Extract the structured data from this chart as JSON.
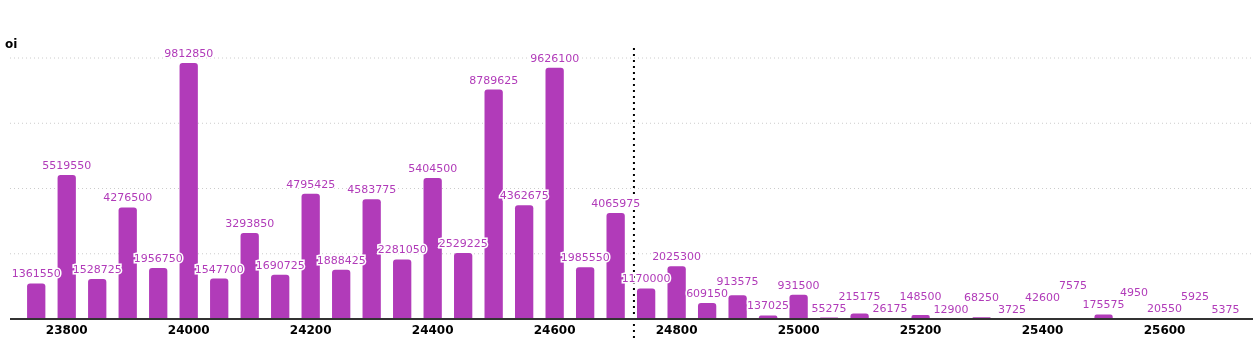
{
  "chart_data": {
    "type": "bar",
    "ylabel": "oi",
    "x": [
      23750,
      23800,
      23850,
      23900,
      23950,
      24000,
      24050,
      24100,
      24150,
      24200,
      24250,
      24300,
      24350,
      24400,
      24450,
      24500,
      24550,
      24600,
      24650,
      24700,
      24750,
      24800,
      24850,
      24900,
      24950,
      25000,
      25050,
      25100,
      25150,
      25200,
      25250,
      25300,
      25350,
      25400,
      25450,
      25500,
      25550,
      25600,
      25650,
      25700
    ],
    "values": [
      1361550,
      5519550,
      1528725,
      4276500,
      1956750,
      9812850,
      1547700,
      3293850,
      1690725,
      4795425,
      1888425,
      4583775,
      2281050,
      5404500,
      2529225,
      8789625,
      4362675,
      9626100,
      1985550,
      4065975,
      1170000,
      2025300,
      609150,
      913575,
      137025,
      931500,
      55275,
      215175,
      26175,
      148500,
      12900,
      68250,
      3725,
      42600,
      7575,
      175575,
      4950,
      20550,
      5925,
      5375
    ],
    "color": "#b13bb9",
    "data_labels": true,
    "xlim": [
      23707,
      25745
    ],
    "xticks": [
      23800,
      24000,
      24200,
      24400,
      24600,
      24800,
      25000,
      25200,
      25400,
      25600
    ],
    "ylim": [
      0,
      10000000
    ],
    "yticks": [
      {
        "value": 2500000,
        "label": null
      },
      {
        "value": 5000000,
        "label": null
      },
      {
        "value": 7500000,
        "label": null
      },
      {
        "value": 10000000,
        "label": null
      }
    ],
    "grid": "y",
    "tick_labels": "x",
    "ref_lines": [
      {
        "axis": "x",
        "value": 24730,
        "label": null,
        "line_style": "dotted",
        "color": "#000000"
      }
    ]
  }
}
